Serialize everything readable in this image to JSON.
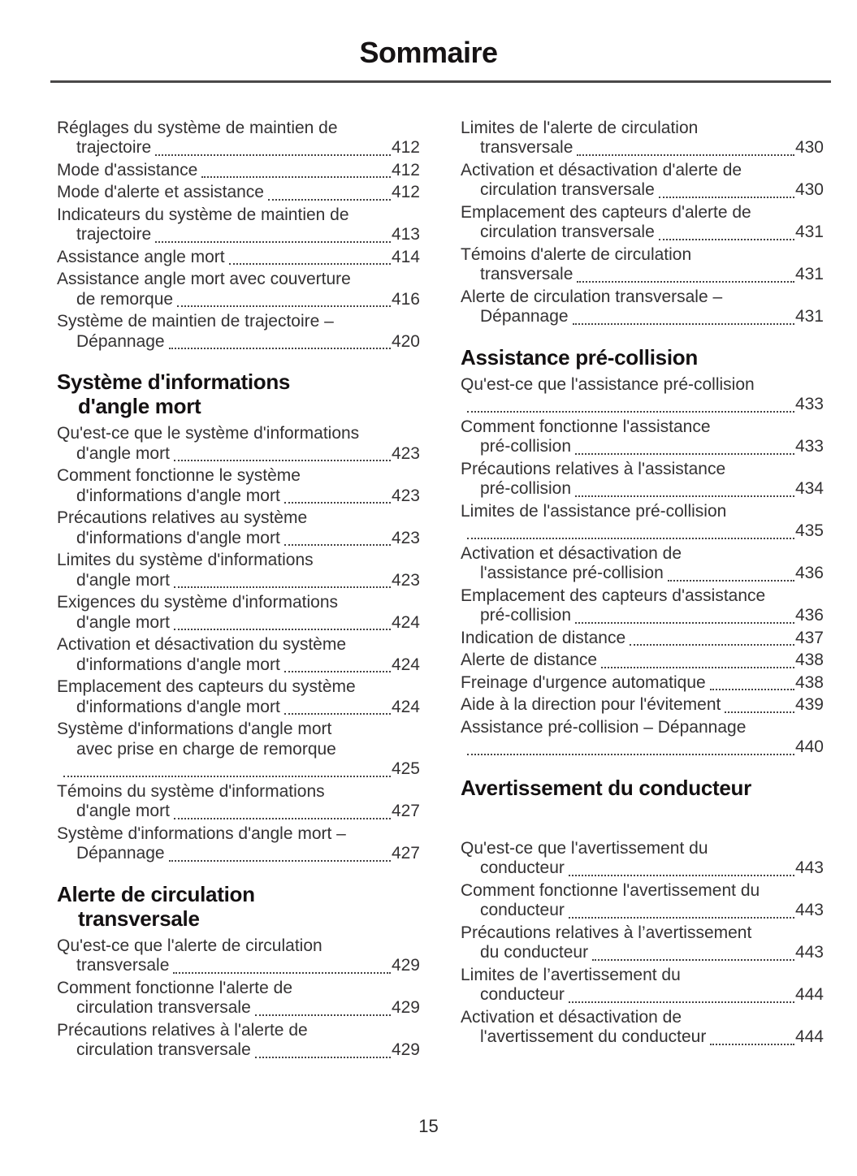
{
  "page": {
    "title": "Sommaire",
    "page_number": "15"
  },
  "columns": [
    {
      "blocks": [
        {
          "type": "entries",
          "items": [
            {
              "lines": [
                "Réglages du système de maintien de",
                "trajectoire"
              ],
              "page": "412"
            },
            {
              "lines": [
                "Mode d'assistance"
              ],
              "page": "412"
            },
            {
              "lines": [
                "Mode d'alerte et assistance"
              ],
              "page": "412"
            },
            {
              "lines": [
                "Indicateurs du système de maintien de",
                "trajectoire"
              ],
              "page": "413"
            },
            {
              "lines": [
                "Assistance angle mort"
              ],
              "page": "414"
            },
            {
              "lines": [
                "Assistance angle mort avec couverture",
                "de remorque"
              ],
              "page": "416"
            },
            {
              "lines": [
                "Système de maintien de trajectoire –",
                "Dépannage"
              ],
              "page": "420"
            }
          ]
        },
        {
          "type": "heading",
          "lines": [
            "Système d'informations",
            "d'angle mort"
          ]
        },
        {
          "type": "entries",
          "items": [
            {
              "lines": [
                "Qu'est-ce que le système d'informations",
                "d'angle mort"
              ],
              "page": "423"
            },
            {
              "lines": [
                "Comment fonctionne le système",
                "d'informations d'angle mort"
              ],
              "page": "423"
            },
            {
              "lines": [
                "Précautions relatives au système",
                "d'informations d'angle mort"
              ],
              "page": "423"
            },
            {
              "lines": [
                "Limites du système d'informations",
                "d'angle mort"
              ],
              "page": "423"
            },
            {
              "lines": [
                "Exigences du système d'informations",
                "d'angle mort"
              ],
              "page": "424"
            },
            {
              "lines": [
                "Activation et désactivation du système",
                "d'informations d'angle mort"
              ],
              "page": "424"
            },
            {
              "lines": [
                "Emplacement des capteurs du système",
                "d'informations d'angle mort"
              ],
              "page": "424"
            },
            {
              "lines": [
                "Système d'informations d'angle mort",
                "avec prise en charge de remorque",
                ""
              ],
              "page": "425"
            },
            {
              "lines": [
                "Témoins du système d'informations",
                "d'angle mort"
              ],
              "page": "427"
            },
            {
              "lines": [
                "Système d'informations d'angle mort –",
                "Dépannage"
              ],
              "page": "427"
            }
          ]
        },
        {
          "type": "heading",
          "lines": [
            "Alerte de circulation",
            "transversale"
          ]
        },
        {
          "type": "entries",
          "items": [
            {
              "lines": [
                "Qu'est-ce que l'alerte de circulation",
                "transversale"
              ],
              "page": "429"
            },
            {
              "lines": [
                "Comment fonctionne l'alerte de",
                "circulation transversale"
              ],
              "page": "429"
            },
            {
              "lines": [
                "Précautions relatives à l'alerte de",
                "circulation transversale"
              ],
              "page": "429"
            }
          ]
        }
      ]
    },
    {
      "blocks": [
        {
          "type": "entries",
          "items": [
            {
              "lines": [
                "Limites de l'alerte de circulation",
                "transversale"
              ],
              "page": "430"
            },
            {
              "lines": [
                "Activation et désactivation d'alerte de",
                "circulation transversale"
              ],
              "page": "430"
            },
            {
              "lines": [
                "Emplacement des capteurs d'alerte de",
                "circulation transversale"
              ],
              "page": "431"
            },
            {
              "lines": [
                "Témoins d'alerte de circulation",
                "transversale"
              ],
              "page": "431"
            },
            {
              "lines": [
                "Alerte de circulation transversale –",
                "Dépannage"
              ],
              "page": "431"
            }
          ]
        },
        {
          "type": "heading",
          "lines": [
            "Assistance pré-collision"
          ]
        },
        {
          "type": "entries",
          "items": [
            {
              "lines": [
                "Qu'est-ce que l'assistance pré-collision",
                ""
              ],
              "page": "433"
            },
            {
              "lines": [
                "Comment fonctionne l'assistance",
                "pré-collision"
              ],
              "page": "433"
            },
            {
              "lines": [
                "Précautions relatives à l'assistance",
                "pré-collision"
              ],
              "page": "434"
            },
            {
              "lines": [
                "Limites de l'assistance pré-collision",
                ""
              ],
              "page": "435"
            },
            {
              "lines": [
                "Activation et désactivation de",
                "l'assistance pré-collision"
              ],
              "page": "436"
            },
            {
              "lines": [
                "Emplacement des capteurs d'assistance",
                "pré-collision"
              ],
              "page": "436"
            },
            {
              "lines": [
                "Indication de distance"
              ],
              "page": "437"
            },
            {
              "lines": [
                "Alerte de distance"
              ],
              "page": "438"
            },
            {
              "lines": [
                "Freinage d'urgence automatique"
              ],
              "page": "438"
            },
            {
              "lines": [
                "Aide à la direction pour l'évitement"
              ],
              "page": "439"
            },
            {
              "lines": [
                "Assistance pré-collision – Dépannage",
                ""
              ],
              "page": "440"
            }
          ]
        },
        {
          "type": "heading",
          "lines": [
            "Avertissement du conducteur"
          ],
          "gap_after": true
        },
        {
          "type": "entries",
          "items": [
            {
              "lines": [
                "Qu'est-ce que l'avertissement du",
                "conducteur"
              ],
              "page": "443"
            },
            {
              "lines": [
                "Comment fonctionne l'avertissement du",
                "conducteur"
              ],
              "page": "443"
            },
            {
              "lines": [
                "Précautions relatives à l’avertissement",
                "du conducteur"
              ],
              "page": "443"
            },
            {
              "lines": [
                "Limites de l’avertissement du",
                "conducteur"
              ],
              "page": "444"
            },
            {
              "lines": [
                "Activation et désactivation de",
                "l'avertissement du conducteur"
              ],
              "page": "444"
            }
          ]
        }
      ]
    }
  ]
}
